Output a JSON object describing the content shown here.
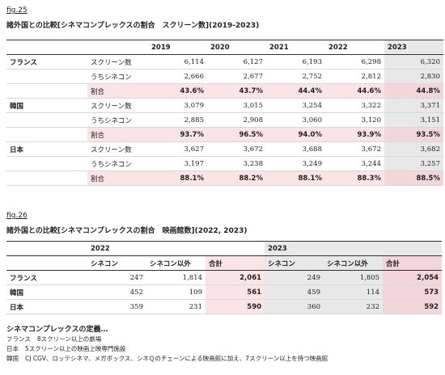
{
  "fig25": {
    "label": "fig.25",
    "title": "諸外国との比較[シネマコンプレックスの割合　スクリーン数](2019-2023)",
    "years": [
      "2019",
      "2020",
      "2021",
      "2022",
      "2023"
    ],
    "groups": [
      {
        "country": "フランス",
        "rows": [
          {
            "metric": "スクリーン数",
            "values": [
              "6,114",
              "6,127",
              "6,193",
              "6,298",
              "6,320"
            ]
          },
          {
            "metric": "うちシネコン",
            "values": [
              "2,666",
              "2,677",
              "2,752",
              "2,812",
              "2,830"
            ]
          },
          {
            "metric": "割合",
            "values": [
              "43.6%",
              "43.7%",
              "44.4%",
              "44.6%",
              "44.8%"
            ]
          }
        ]
      },
      {
        "country": "韓国",
        "rows": [
          {
            "metric": "スクリーン数",
            "values": [
              "3,079",
              "3,015",
              "3,254",
              "3,322",
              "3,371"
            ]
          },
          {
            "metric": "うちシネコン",
            "values": [
              "2,885",
              "2,908",
              "3,060",
              "3,120",
              "3,151"
            ]
          },
          {
            "metric": "割合",
            "values": [
              "93.7%",
              "96.5%",
              "94.0%",
              "93.9%",
              "93.5%"
            ]
          }
        ]
      },
      {
        "country": "日本",
        "rows": [
          {
            "metric": "スクリーン数",
            "values": [
              "3,627",
              "3,672",
              "3,688",
              "3,672",
              "3,682"
            ]
          },
          {
            "metric": "うちシネコン",
            "values": [
              "3,197",
              "3,238",
              "3,249",
              "3,244",
              "3,257"
            ]
          },
          {
            "metric": "割合",
            "values": [
              "88.1%",
              "88.2%",
              "88.1%",
              "88.3%",
              "88.5%"
            ]
          }
        ]
      }
    ]
  },
  "fig26": {
    "label": "fig.26",
    "title": "諸外国との比較[シネマコンプレックスの割合　映画館数](2022, 2023)",
    "years": [
      "2022",
      "2023"
    ],
    "columns": [
      "シネコン",
      "シネコン以外",
      "合計"
    ],
    "rows": [
      {
        "country": "フランス",
        "values": [
          "247",
          "1,814",
          "2,061",
          "249",
          "1,805",
          "2,054"
        ]
      },
      {
        "country": "韓国",
        "values": [
          "452",
          "109",
          "561",
          "459",
          "114",
          "573"
        ]
      },
      {
        "country": "日本",
        "values": [
          "359",
          "231",
          "590",
          "360",
          "232",
          "592"
        ]
      }
    ]
  },
  "notes": {
    "heading": "シネマコンプレックスの定義…",
    "items": [
      {
        "country": "フランス",
        "text": "8スクリーン以上の劇場"
      },
      {
        "country": "日本",
        "text": "5スクリーン以上の映画上映専門施設"
      },
      {
        "country": "韓国",
        "text": "CJ CGV、ロッテシネマ、メガボックス、シネＱのチェーンによる映画館に加え、7スクリーン以上を持つ映画館"
      }
    ]
  }
}
